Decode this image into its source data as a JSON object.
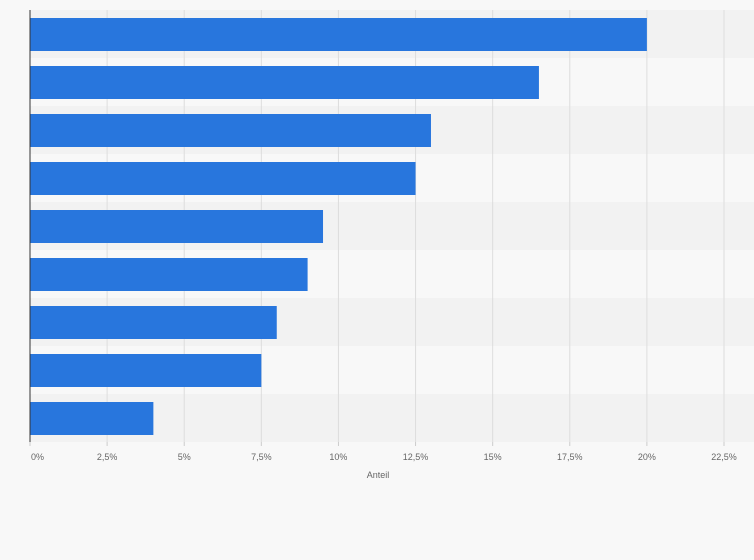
{
  "chart_data": {
    "type": "bar",
    "orientation": "horizontal",
    "categories": [
      "",
      "",
      "",
      "",
      "",
      "",
      "",
      "",
      ""
    ],
    "values": [
      20,
      16.5,
      13,
      12.5,
      9.5,
      9,
      8,
      7.5,
      4
    ],
    "xlabel": "Anteil",
    "ylabel": "",
    "xlim": [
      0,
      22.5
    ],
    "ticks": [
      {
        "value": 0,
        "label": "0%"
      },
      {
        "value": 2.5,
        "label": "2,5%"
      },
      {
        "value": 5,
        "label": "5%"
      },
      {
        "value": 7.5,
        "label": "7,5%"
      },
      {
        "value": 10,
        "label": "10%"
      },
      {
        "value": 12.5,
        "label": "12,5%"
      },
      {
        "value": 15,
        "label": "15%"
      },
      {
        "value": 17.5,
        "label": "17,5%"
      },
      {
        "value": 20,
        "label": "20%"
      },
      {
        "value": 22.5,
        "label": "22,5%"
      }
    ],
    "grid": true,
    "legend": "none",
    "colors": {
      "bar": "#2876dd",
      "band_dark": "#f2f2f2",
      "band_light": "#f8f8f8",
      "grid": "#dddddd",
      "axis": "#333333"
    }
  }
}
